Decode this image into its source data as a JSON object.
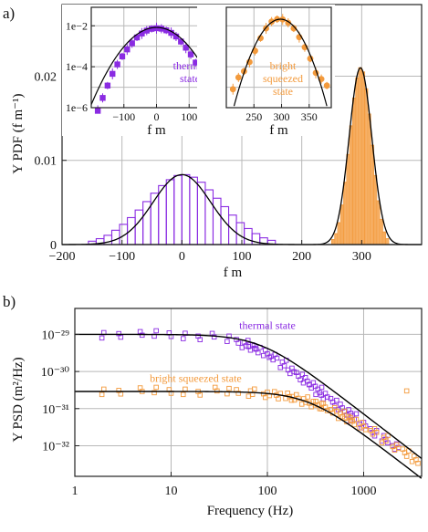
{
  "chart_data": [
    {
      "id": "a_main",
      "type": "bar",
      "panel_label": "a)",
      "xlabel": "f m",
      "ylabel": "Y PDF (f m⁻¹)",
      "xlim": [
        -200,
        400
      ],
      "ylim": [
        0,
        0.0285
      ],
      "xticks": [
        -200,
        -100,
        0,
        100,
        200,
        300
      ],
      "xtick_labels": [
        "−200",
        "−100",
        "0",
        "100",
        "200",
        "300"
      ],
      "yticks": [
        0,
        0.01,
        0.02
      ],
      "ytick_labels": [
        "0",
        "0.01",
        "0.02"
      ],
      "grid": true,
      "series": [
        {
          "color": "#8a2be2",
          "style": "histogram-outline",
          "bin_width": 13,
          "x": [
            -149.5,
            -136.5,
            -123.5,
            -110.5,
            -97.5,
            -84.5,
            -71.5,
            -58.5,
            -45.5,
            -32.5,
            -19.5,
            -6.5,
            6.5,
            19.5,
            32.5,
            45.5,
            58.5,
            71.5,
            84.5,
            97.5,
            110.5,
            123.5,
            136.5,
            149.5
          ],
          "values": [
            0.0004,
            0.0007,
            0.0011,
            0.0017,
            0.0024,
            0.0032,
            0.0041,
            0.0051,
            0.0061,
            0.007,
            0.0077,
            0.0082,
            0.0083,
            0.008,
            0.0074,
            0.0065,
            0.0055,
            0.0045,
            0.0035,
            0.0026,
            0.0019,
            0.0013,
            0.0008,
            0.0005
          ]
        },
        {
          "color": "#f39a3c",
          "style": "histogram-filled",
          "bin_width": 5,
          "x": [
            252.5,
            257.5,
            262.5,
            267.5,
            272.5,
            277.5,
            282.5,
            287.5,
            292.5,
            297.5,
            302.5,
            307.5,
            312.5,
            317.5,
            322.5,
            327.5,
            332.5,
            337.5,
            342.5
          ],
          "values": [
            0.0006,
            0.0013,
            0.0026,
            0.0047,
            0.0074,
            0.0107,
            0.0141,
            0.0174,
            0.0198,
            0.021,
            0.0205,
            0.0185,
            0.0155,
            0.0118,
            0.0082,
            0.0052,
            0.003,
            0.0015,
            0.0007
          ]
        }
      ],
      "fits": [
        {
          "color": "#000000",
          "shape": "gaussian",
          "mean": 0,
          "sigma": 48,
          "peak": 0.0083
        },
        {
          "color": "#000000",
          "shape": "gaussian",
          "mean": 298,
          "sigma": 19,
          "peak": 0.021
        }
      ]
    },
    {
      "id": "a_inset_thermal",
      "type": "scatter",
      "xlabel": "f m",
      "annotation": [
        "thermal",
        "state"
      ],
      "y_scale": "log",
      "xlim": [
        -200,
        200
      ],
      "ylim": [
        1e-06,
        0.08
      ],
      "xticks": [
        -100,
        0,
        100
      ],
      "xtick_labels": [
        "−100",
        "0",
        "100"
      ],
      "yticks": [
        1e-06,
        0.0001,
        0.01
      ],
      "ytick_labels": [
        "1e−6",
        "1e−4",
        "1e−2"
      ],
      "grid": true,
      "series": [
        {
          "color": "#8a2be2",
          "marker": "filled-square-with-errorbars",
          "x": [
            -180,
            -165,
            -150,
            -135,
            -120,
            -105,
            -90,
            -75,
            -60,
            -45,
            -30,
            -15,
            0,
            15,
            30,
            45,
            60,
            75,
            90,
            105,
            120,
            135,
            150,
            165,
            180
          ],
          "values": [
            7e-07,
            3e-06,
            1.2e-05,
            4.5e-05,
            0.00013,
            0.00032,
            0.0007,
            0.0014,
            0.0027,
            0.0042,
            0.0058,
            0.0071,
            0.0076,
            0.0072,
            0.006,
            0.0045,
            0.003,
            0.0017,
            0.00085,
            0.0004,
            0.00016,
            6e-05,
            1.8e-05,
            5e-06,
            1.5e-06
          ]
        }
      ],
      "fits": [
        {
          "color": "#000000",
          "shape": "gaussian",
          "mean": 0,
          "sigma": 48,
          "peak": 0.0083
        }
      ]
    },
    {
      "id": "a_inset_squeezed",
      "type": "scatter",
      "xlabel": "f m",
      "annotation": [
        "bright",
        "squeezed",
        "state"
      ],
      "y_scale": "log",
      "xlim": [
        200,
        390
      ],
      "ylim": [
        1e-06,
        0.08
      ],
      "xticks": [
        250,
        300,
        350
      ],
      "xtick_labels": [
        "250",
        "300",
        "350"
      ],
      "grid": true,
      "series": [
        {
          "color": "#f39a3c",
          "marker": "filled-circle-with-errorbars",
          "x": [
            212,
            222,
            232,
            242,
            252,
            262,
            272,
            282,
            292,
            302,
            312,
            322,
            332,
            342,
            352,
            362,
            372,
            382
          ],
          "values": [
            8e-06,
            3e-05,
            6e-05,
            0.00017,
            0.0006,
            0.0025,
            0.0075,
            0.016,
            0.021,
            0.0205,
            0.014,
            0.0075,
            0.0028,
            0.0009,
            0.00025,
            5e-05,
            2.5e-05,
            1.2e-05
          ]
        }
      ],
      "fits": [
        {
          "color": "#000000",
          "shape": "gaussian",
          "mean": 298,
          "sigma": 19,
          "peak": 0.021
        }
      ]
    },
    {
      "id": "b_psd",
      "type": "scatter",
      "panel_label": "b)",
      "xlabel": "Frequency (Hz)",
      "ylabel": "Y PSD (m²/Hz)",
      "x_scale": "log",
      "y_scale": "log",
      "xlim": [
        1,
        4000
      ],
      "ylim": [
        1.5e-33,
        5e-29
      ],
      "xticks": [
        1,
        10,
        100,
        1000
      ],
      "xtick_labels": [
        "1",
        "10",
        "100",
        "1000"
      ],
      "yticks": [
        1e-32,
        1e-31,
        1e-30,
        1e-29
      ],
      "ytick_labels": [
        "10⁻³²",
        "10⁻³¹",
        "10⁻³⁰",
        "10⁻²⁹"
      ],
      "grid": true,
      "series": [
        {
          "name": "thermal state",
          "color": "#8a2be2",
          "marker": "open-square",
          "x": [
            2,
            3,
            5,
            7,
            10,
            14,
            20,
            28,
            40,
            50,
            60,
            70,
            80,
            100,
            120,
            150,
            180,
            220,
            260,
            300,
            350,
            400,
            500,
            600,
            700,
            800,
            1000,
            1300,
            1700,
            2200
          ],
          "values": [
            1e-29,
            1.05e-29,
            9.5e-30,
            1e-29,
            9.8e-30,
            9.6e-30,
            9e-30,
            8.5e-30,
            7.2e-30,
            6.5e-30,
            5.5e-30,
            4.7e-30,
            4e-30,
            3e-30,
            2.3e-30,
            1.6e-30,
            1.1e-30,
            7.5e-31,
            5.5e-31,
            4e-31,
            3e-31,
            2.3e-31,
            1.5e-31,
            1.05e-31,
            7.5e-32,
            5.8e-32,
            3.8e-32,
            2.3e-32,
            1.5e-32,
            9e-33
          ]
        },
        {
          "name": "bright squeezed state",
          "color": "#f39a3c",
          "marker": "open-square",
          "x": [
            2,
            3,
            5,
            7,
            10,
            14,
            20,
            30,
            40,
            50,
            70,
            100,
            130,
            170,
            200,
            250,
            300,
            350,
            400,
            500,
            600,
            700,
            800,
            1000,
            1300,
            1700,
            2200,
            2800,
            3500
          ],
          "values": [
            3e-31,
            3.1e-31,
            2.9e-31,
            3e-31,
            2.9e-31,
            3e-31,
            2.9e-31,
            3e-31,
            2.8e-31,
            2.9e-31,
            2.7e-31,
            2.5e-31,
            2.3e-31,
            2.1e-31,
            1.9e-31,
            1.65e-31,
            1.4e-31,
            1.25e-31,
            1.1e-31,
            8.5e-32,
            6.8e-32,
            5.5e-32,
            4.6e-32,
            3.4e-32,
            2.3e-32,
            1.5e-32,
            9.5e-33,
            6.5e-33,
            4.2e-33
          ]
        }
      ],
      "outliers": [
        {
          "color": "#f39a3c",
          "x": 2800,
          "value": 3e-31
        }
      ],
      "fits": [
        {
          "color": "#000000",
          "shape": "lorentzian",
          "plateau": 1e-29,
          "corner": 85
        },
        {
          "color": "#000000",
          "shape": "lorentzian",
          "plateau": 2.9e-31,
          "corner": 270
        }
      ]
    }
  ]
}
